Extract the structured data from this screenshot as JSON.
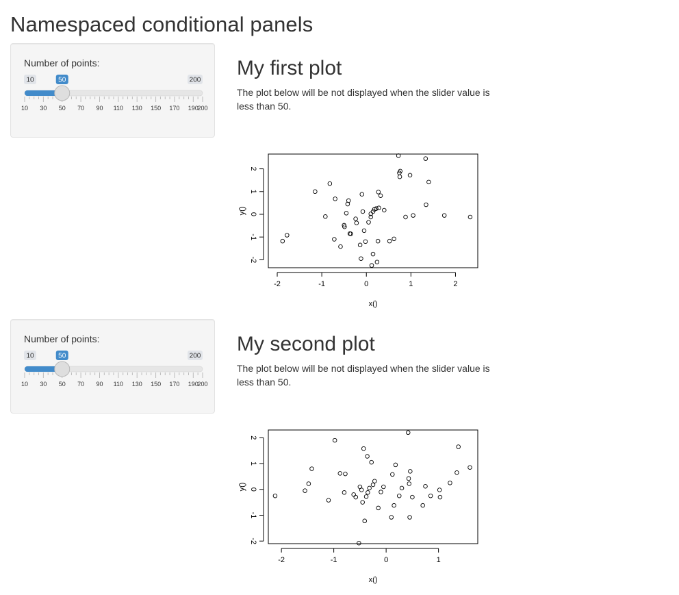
{
  "page": {
    "title": "Namespaced conditional panels"
  },
  "panels": [
    {
      "slider": {
        "label": "Number of points:",
        "min": 10,
        "max": 200,
        "value": 50,
        "min_label": "10",
        "max_label": "200",
        "value_label": "50",
        "tick_labels": [
          "10",
          "30",
          "50",
          "70",
          "90",
          "110",
          "130",
          "150",
          "170",
          "190",
          "200"
        ]
      },
      "heading": "My first plot",
      "description": "The plot below will be not displayed when the slider value is less than 50.",
      "chart_data": {
        "type": "scatter",
        "xlabel": "x()",
        "ylabel": "y()",
        "xlim": [
          -2.2,
          2.5
        ],
        "ylim": [
          -2.35,
          2.65
        ],
        "xticks": [
          -2,
          -1,
          0,
          1,
          2
        ],
        "yticks": [
          -2,
          -1,
          0,
          1,
          2
        ],
        "x": [
          -1.88,
          -1.78,
          -1.15,
          -0.92,
          -0.82,
          -0.72,
          -0.7,
          -0.58,
          -0.5,
          -0.49,
          -0.45,
          -0.42,
          -0.4,
          -0.37,
          -0.35,
          -0.24,
          -0.22,
          -0.14,
          -0.12,
          -0.1,
          -0.08,
          -0.05,
          -0.02,
          0.05,
          0.1,
          0.1,
          0.12,
          0.15,
          0.15,
          0.18,
          0.22,
          0.24,
          0.26,
          0.27,
          0.28,
          0.32,
          0.4,
          0.52,
          0.62,
          0.72,
          0.74,
          0.75,
          0.76,
          0.88,
          0.98,
          1.05,
          1.33,
          1.34,
          1.4,
          1.75,
          2.33
        ],
        "y": [
          -1.18,
          -0.92,
          1.0,
          -0.1,
          1.35,
          -1.1,
          0.68,
          -1.42,
          -0.48,
          -0.55,
          0.05,
          0.45,
          0.6,
          -0.85,
          -0.86,
          -0.2,
          -0.38,
          -1.35,
          -1.95,
          0.88,
          0.12,
          -0.72,
          -1.2,
          -0.35,
          -0.12,
          0.02,
          -2.25,
          -1.75,
          0.12,
          0.22,
          0.25,
          -2.1,
          -1.18,
          0.98,
          0.28,
          0.82,
          0.18,
          -1.18,
          -1.08,
          2.58,
          1.82,
          1.65,
          1.9,
          -0.12,
          1.72,
          -0.05,
          2.45,
          0.42,
          1.42,
          -0.05,
          -0.12
        ]
      }
    },
    {
      "slider": {
        "label": "Number of points:",
        "min": 10,
        "max": 200,
        "value": 50,
        "min_label": "10",
        "max_label": "200",
        "value_label": "50",
        "tick_labels": [
          "10",
          "30",
          "50",
          "70",
          "90",
          "110",
          "130",
          "150",
          "170",
          "190",
          "200"
        ]
      },
      "heading": "My second plot",
      "description": "The plot below will be not displayed when the slider value is less than 50.",
      "chart_data": {
        "type": "scatter",
        "xlabel": "x()",
        "ylabel": "y()",
        "xlim": [
          -2.25,
          1.75
        ],
        "ylim": [
          -2.1,
          2.3
        ],
        "xticks": [
          -2,
          -1,
          0,
          1
        ],
        "yticks": [
          -2,
          -1,
          0,
          1,
          2
        ],
        "x": [
          -2.12,
          -1.55,
          -1.48,
          -1.42,
          -1.1,
          -0.98,
          -0.88,
          -0.8,
          -0.78,
          -0.62,
          -0.58,
          -0.52,
          -0.5,
          -0.47,
          -0.45,
          -0.43,
          -0.41,
          -0.38,
          -0.36,
          -0.35,
          -0.32,
          -0.28,
          -0.25,
          -0.22,
          -0.15,
          -0.1,
          -0.05,
          0.1,
          0.12,
          0.15,
          0.18,
          0.25,
          0.3,
          0.42,
          0.43,
          0.44,
          0.45,
          0.46,
          0.5,
          0.7,
          0.75,
          0.85,
          1.02,
          1.03,
          1.22,
          1.35,
          1.38,
          1.6
        ],
        "y": [
          -0.25,
          -0.05,
          0.22,
          0.8,
          -0.42,
          1.9,
          0.62,
          -0.12,
          0.6,
          -0.2,
          -0.3,
          -2.08,
          0.1,
          -0.02,
          -0.5,
          1.58,
          -1.22,
          -0.28,
          1.28,
          -0.12,
          0.05,
          1.05,
          0.18,
          0.32,
          -0.72,
          -0.1,
          0.1,
          -1.08,
          0.58,
          -0.62,
          0.95,
          -0.25,
          0.05,
          2.2,
          0.42,
          0.22,
          -1.08,
          0.7,
          -0.3,
          -0.62,
          0.12,
          -0.25,
          -0.02,
          -0.3,
          0.25,
          0.65,
          1.65,
          0.85
        ]
      }
    }
  ]
}
